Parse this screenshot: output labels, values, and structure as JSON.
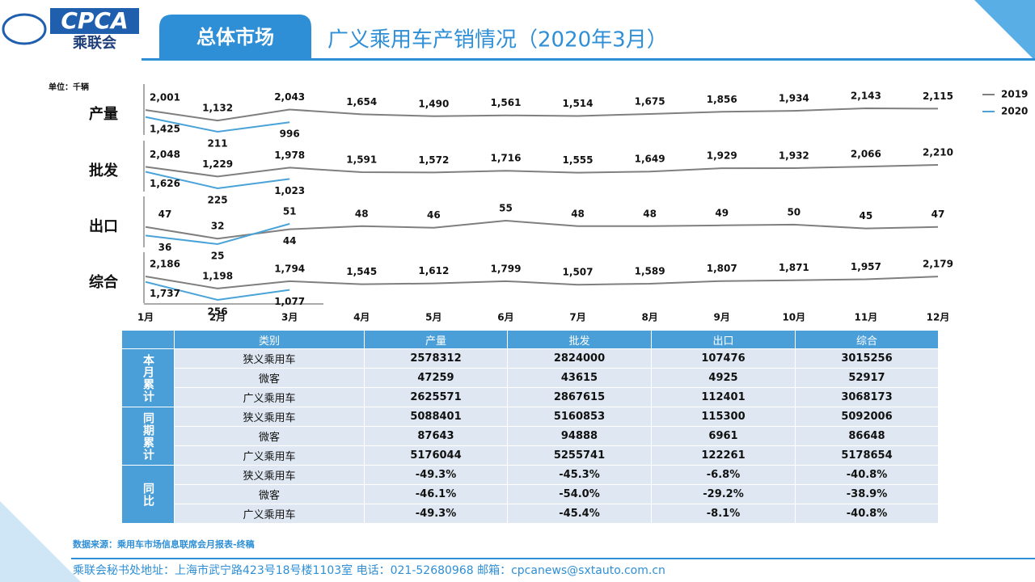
{
  "header": {
    "logo_text": "CPCA",
    "logo_subtitle": "乘联会",
    "tab": "总体市场",
    "title": "广义乘用车产销情况（2020年3月）"
  },
  "chart_data": {
    "type": "line",
    "unit": "单位：千辆",
    "categories": [
      "1月",
      "2月",
      "3月",
      "4月",
      "5月",
      "6月",
      "7月",
      "8月",
      "9月",
      "10月",
      "11月",
      "12月"
    ],
    "series": [
      {
        "name": "2019",
        "color": "#7f7f7f"
      },
      {
        "name": "2020",
        "color": "#4aa3d8"
      }
    ],
    "panels": [
      {
        "title": "产量",
        "values": [
          [
            2001,
            1132,
            2043,
            1654,
            1490,
            1561,
            1514,
            1675,
            1856,
            1934,
            2143,
            2115
          ],
          [
            1425,
            211,
            996,
            null,
            null,
            null,
            null,
            null,
            null,
            null,
            null,
            null
          ]
        ],
        "value_labels": [
          [
            "2,001",
            "1,132",
            "2,043",
            "1,654",
            "1,490",
            "1,561",
            "1,514",
            "1,675",
            "1,856",
            "1,934",
            "2,143",
            "2,115"
          ],
          [
            "1,425",
            "211",
            "996",
            null,
            null,
            null,
            null,
            null,
            null,
            null,
            null,
            null
          ]
        ]
      },
      {
        "title": "批发",
        "values": [
          [
            2048,
            1229,
            1978,
            1591,
            1572,
            1716,
            1555,
            1649,
            1929,
            1932,
            2066,
            2210
          ],
          [
            1626,
            225,
            1023,
            null,
            null,
            null,
            null,
            null,
            null,
            null,
            null,
            null
          ]
        ],
        "value_labels": [
          [
            "2,048",
            "1,229",
            "1,978",
            "1,591",
            "1,572",
            "1,716",
            "1,555",
            "1,649",
            "1,929",
            "1,932",
            "2,066",
            "2,210"
          ],
          [
            "1,626",
            "225",
            "1,023",
            null,
            null,
            null,
            null,
            null,
            null,
            null,
            null,
            null
          ]
        ]
      },
      {
        "title": "出口",
        "values": [
          [
            47,
            32,
            44,
            48,
            46,
            55,
            48,
            48,
            49,
            50,
            45,
            47
          ],
          [
            36,
            25,
            51,
            null,
            null,
            null,
            null,
            null,
            null,
            null,
            null,
            null
          ]
        ]
      },
      {
        "title": "综合",
        "values": [
          [
            2186,
            1198,
            1794,
            1545,
            1612,
            1799,
            1507,
            1589,
            1807,
            1871,
            1957,
            2179
          ],
          [
            1737,
            256,
            1077,
            null,
            null,
            null,
            null,
            null,
            null,
            null,
            null,
            null
          ]
        ],
        "value_labels": [
          [
            "2,186",
            "1,198",
            "1,794",
            "1,545",
            "1,612",
            "1,799",
            "1,507",
            "1,589",
            "1,807",
            "1,871",
            "1,957",
            "2,179"
          ],
          [
            "1,737",
            "256",
            "1,077",
            null,
            null,
            null,
            null,
            null,
            null,
            null,
            null,
            null
          ]
        ]
      }
    ]
  },
  "table": {
    "columns": [
      "类别",
      "产量",
      "批发",
      "出口",
      "综合"
    ],
    "groups": [
      {
        "label": "本月累计",
        "rows": [
          [
            "狭义乘用车",
            2578312,
            2824000,
            107476,
            3015256
          ],
          [
            "微客",
            47259,
            43615,
            4925,
            52917
          ],
          [
            "广义乘用车",
            2625571,
            2867615,
            112401,
            3068173
          ]
        ]
      },
      {
        "label": "同期累计",
        "rows": [
          [
            "狭义乘用车",
            5088401,
            5160853,
            115300,
            5092006
          ],
          [
            "微客",
            87643,
            94888,
            6961,
            86648
          ],
          [
            "广义乘用车",
            5176044,
            5255741,
            122261,
            5178654
          ]
        ]
      },
      {
        "label": "同比",
        "rows": [
          [
            "狭义乘用车",
            "-49.3%",
            "-45.3%",
            "-6.8%",
            "-40.8%"
          ],
          [
            "微客",
            "-46.1%",
            "-54.0%",
            "-29.2%",
            "-38.9%"
          ],
          [
            "广义乘用车",
            "-49.3%",
            "-45.4%",
            "-8.1%",
            "-40.8%"
          ]
        ]
      }
    ]
  },
  "source": "数据来源：乘用车市场信息联席会月报表-终稿",
  "footer": "乘联会秘书处地址：上海市武宁路423号18号楼1103室  电话：021-52680968   邮箱：cpcanews@sxtauto.com.cn"
}
